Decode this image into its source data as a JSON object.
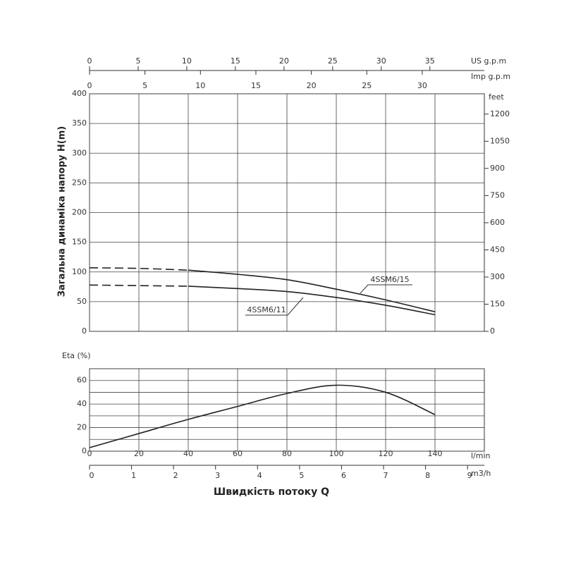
{
  "x_title": "Швидкість потоку Q",
  "head_chart": {
    "type": "line",
    "y_title": "Загальна динаміка напору H(m)",
    "xlim": [
      0,
      160
    ],
    "xticks": [
      0,
      20,
      40,
      60,
      80,
      100,
      120,
      140
    ],
    "ylim": [
      0,
      400
    ],
    "yticks": [
      0,
      50,
      100,
      150,
      200,
      250,
      300,
      350,
      400
    ],
    "grid": true,
    "y2_label": "feet",
    "y2lim": [
      0,
      1312.3
    ],
    "y2ticks": [
      0,
      150,
      300,
      450,
      600,
      750,
      900,
      1050,
      1200
    ],
    "top_axes": [
      {
        "label": "US g.p.m",
        "xlim": [
          0,
          40.6
        ],
        "xticks": [
          0,
          5,
          10,
          15,
          20,
          25,
          30,
          35
        ]
      },
      {
        "label": "Imp g.p.m",
        "xlim": [
          0,
          35.6
        ],
        "xticks": [
          0,
          5,
          10,
          15,
          20,
          25,
          30
        ]
      }
    ],
    "series": [
      {
        "name": "4SSM6/15",
        "color": "#222",
        "dashed_until": 40,
        "x": [
          0,
          20,
          40,
          60,
          80,
          100,
          120,
          140
        ],
        "values": [
          107,
          106,
          103,
          96,
          87,
          71,
          53,
          33
        ]
      },
      {
        "name": "4SSM6/11",
        "color": "#222",
        "dashed_until": 40,
        "x": [
          0,
          20,
          40,
          60,
          80,
          100,
          120,
          140
        ],
        "values": [
          78,
          77,
          76,
          72,
          67,
          57,
          44,
          28
        ]
      }
    ]
  },
  "eta_chart": {
    "type": "line",
    "y_title": "Eta (%)",
    "xlim": [
      0,
      160
    ],
    "xticks": [
      0,
      20,
      40,
      60,
      80,
      100,
      120,
      140
    ],
    "x_unit": "l/min",
    "ylim": [
      0,
      70
    ],
    "yticks": [
      0,
      20,
      40,
      60
    ],
    "minor_yticks": [
      10,
      30,
      50,
      70
    ],
    "grid": true,
    "series": [
      {
        "color": "#222",
        "x": [
          0,
          20,
          40,
          60,
          80,
          100,
          120,
          140
        ],
        "values": [
          3,
          15,
          27,
          38,
          49,
          56,
          50,
          31
        ]
      }
    ],
    "bottom_axis": {
      "label": "m3/h",
      "xlim": [
        0,
        9.4
      ],
      "xticks": [
        0,
        1,
        2,
        3,
        4,
        5,
        6,
        7,
        8,
        9
      ]
    }
  }
}
